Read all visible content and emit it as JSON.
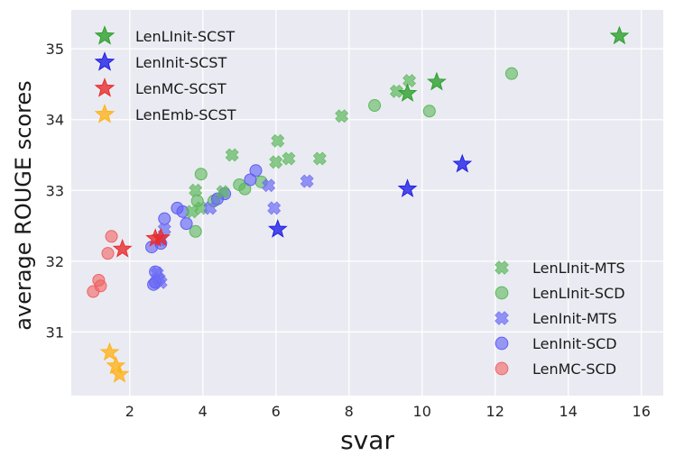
{
  "chart_data": {
    "type": "scatter",
    "title": "",
    "xlabel": "svar",
    "ylabel": "average ROUGE scores",
    "xlim": [
      0.4,
      16.6
    ],
    "ylim": [
      30.1,
      35.55
    ],
    "xticks": [
      2,
      4,
      6,
      8,
      10,
      12,
      14,
      16
    ],
    "yticks": [
      31,
      32,
      33,
      34,
      35
    ],
    "grid": true,
    "legends": [
      {
        "placement": "top-left",
        "entries": [
          "LenLInit-SCST",
          "LenInit-SCST",
          "LenMC-SCST",
          "LenEmb-SCST"
        ]
      },
      {
        "placement": "bottom-right",
        "entries": [
          "LenLInit-MTS",
          "LenLInit-SCD",
          "LenInit-MTS",
          "LenInit-SCD",
          "LenMC-SCD"
        ]
      }
    ],
    "series": [
      {
        "name": "LenLInit-SCST",
        "marker": "star",
        "color": "#2ca02c",
        "points": [
          [
            15.4,
            35.18
          ],
          [
            10.4,
            34.53
          ],
          [
            9.6,
            34.37
          ]
        ]
      },
      {
        "name": "LenInit-SCST",
        "marker": "star",
        "color": "#1f1fe6",
        "points": [
          [
            11.1,
            33.37
          ],
          [
            9.6,
            33.02
          ],
          [
            6.05,
            32.45
          ]
        ]
      },
      {
        "name": "LenMC-SCST",
        "marker": "star",
        "color": "#e82c2c",
        "points": [
          [
            2.7,
            32.32
          ],
          [
            2.85,
            32.33
          ],
          [
            1.8,
            32.17
          ]
        ]
      },
      {
        "name": "LenEmb-SCST",
        "marker": "star",
        "color": "#ffb31a",
        "points": [
          [
            1.45,
            30.71
          ],
          [
            1.62,
            30.52
          ],
          [
            1.72,
            30.4
          ]
        ]
      },
      {
        "name": "LenLInit-MTS",
        "marker": "x",
        "color": "#5cb85c",
        "points": [
          [
            9.65,
            34.55
          ],
          [
            9.3,
            34.4
          ],
          [
            7.8,
            34.05
          ],
          [
            7.2,
            33.45
          ],
          [
            6.05,
            33.7
          ],
          [
            6.35,
            33.45
          ],
          [
            6.0,
            33.4
          ],
          [
            4.8,
            33.5
          ],
          [
            4.55,
            32.98
          ],
          [
            3.8,
            33.0
          ],
          [
            3.95,
            32.75
          ],
          [
            3.7,
            32.7
          ]
        ]
      },
      {
        "name": "LenLInit-SCD",
        "marker": "circle",
        "color": "#5cb85c",
        "points": [
          [
            12.45,
            34.65
          ],
          [
            8.7,
            34.2
          ],
          [
            10.2,
            34.12
          ],
          [
            5.6,
            33.12
          ],
          [
            5.0,
            33.08
          ],
          [
            5.15,
            33.02
          ],
          [
            3.95,
            33.23
          ],
          [
            3.85,
            32.85
          ],
          [
            4.3,
            32.85
          ],
          [
            3.8,
            32.42
          ]
        ]
      },
      {
        "name": "LenInit-MTS",
        "marker": "x",
        "color": "#6b6bf5",
        "points": [
          [
            6.85,
            33.13
          ],
          [
            5.8,
            33.07
          ],
          [
            5.95,
            32.75
          ],
          [
            4.2,
            32.75
          ],
          [
            2.95,
            32.45
          ],
          [
            2.85,
            32.3
          ],
          [
            2.8,
            31.75
          ],
          [
            2.85,
            31.7
          ],
          [
            2.75,
            31.83
          ]
        ]
      },
      {
        "name": "LenInit-SCD",
        "marker": "circle",
        "color": "#5e5ef5",
        "points": [
          [
            5.45,
            33.28
          ],
          [
            5.3,
            33.15
          ],
          [
            3.3,
            32.75
          ],
          [
            3.45,
            32.7
          ],
          [
            4.4,
            32.88
          ],
          [
            4.6,
            32.95
          ],
          [
            2.95,
            32.6
          ],
          [
            3.55,
            32.53
          ],
          [
            2.6,
            32.2
          ],
          [
            2.85,
            32.25
          ],
          [
            2.7,
            31.85
          ],
          [
            2.7,
            31.7
          ],
          [
            2.65,
            31.67
          ]
        ]
      },
      {
        "name": "LenMC-SCD",
        "marker": "circle",
        "color": "#f06262",
        "points": [
          [
            1.5,
            32.35
          ],
          [
            1.4,
            32.11
          ],
          [
            1.15,
            31.73
          ],
          [
            1.2,
            31.65
          ],
          [
            1.0,
            31.57
          ]
        ]
      }
    ]
  }
}
